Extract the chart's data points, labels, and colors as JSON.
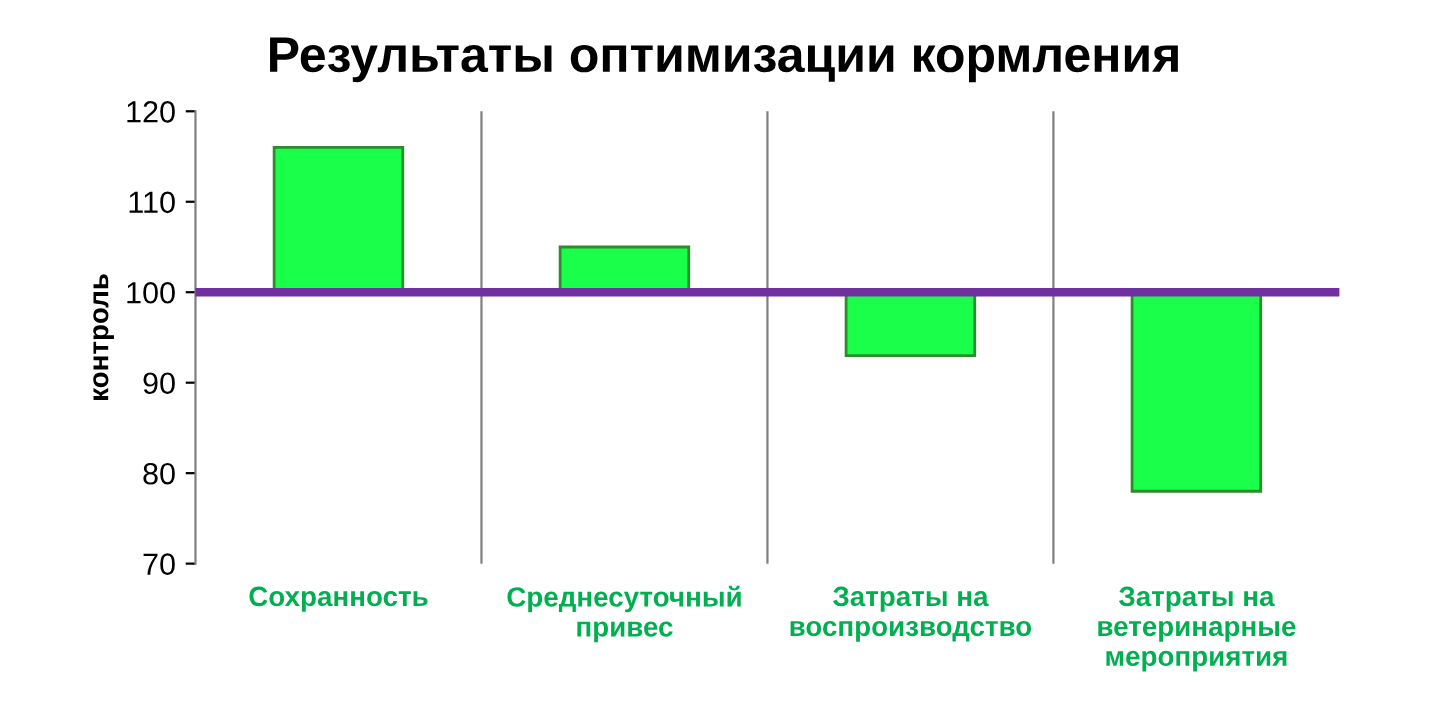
{
  "chart_data": {
    "type": "bar",
    "title": "Результаты оптимизации кормления",
    "ylabel": "контроль",
    "categories": [
      "Сохранность",
      "Среднесуточный\nпривес",
      "Затраты на\nвоспроизводство",
      "Затраты на\nветеринарные\nмероприятия"
    ],
    "base": [
      100,
      100,
      100,
      100
    ],
    "values": [
      16,
      5,
      -7,
      -22
    ],
    "color": "#1aff4a",
    "ylim": [
      70,
      120
    ],
    "yticks": [
      70,
      80,
      90,
      100,
      110,
      120
    ],
    "grid": "x",
    "ref_lines": [
      {
        "axis": "y",
        "value": 100,
        "label": null,
        "color": "#7030a0"
      }
    ]
  }
}
